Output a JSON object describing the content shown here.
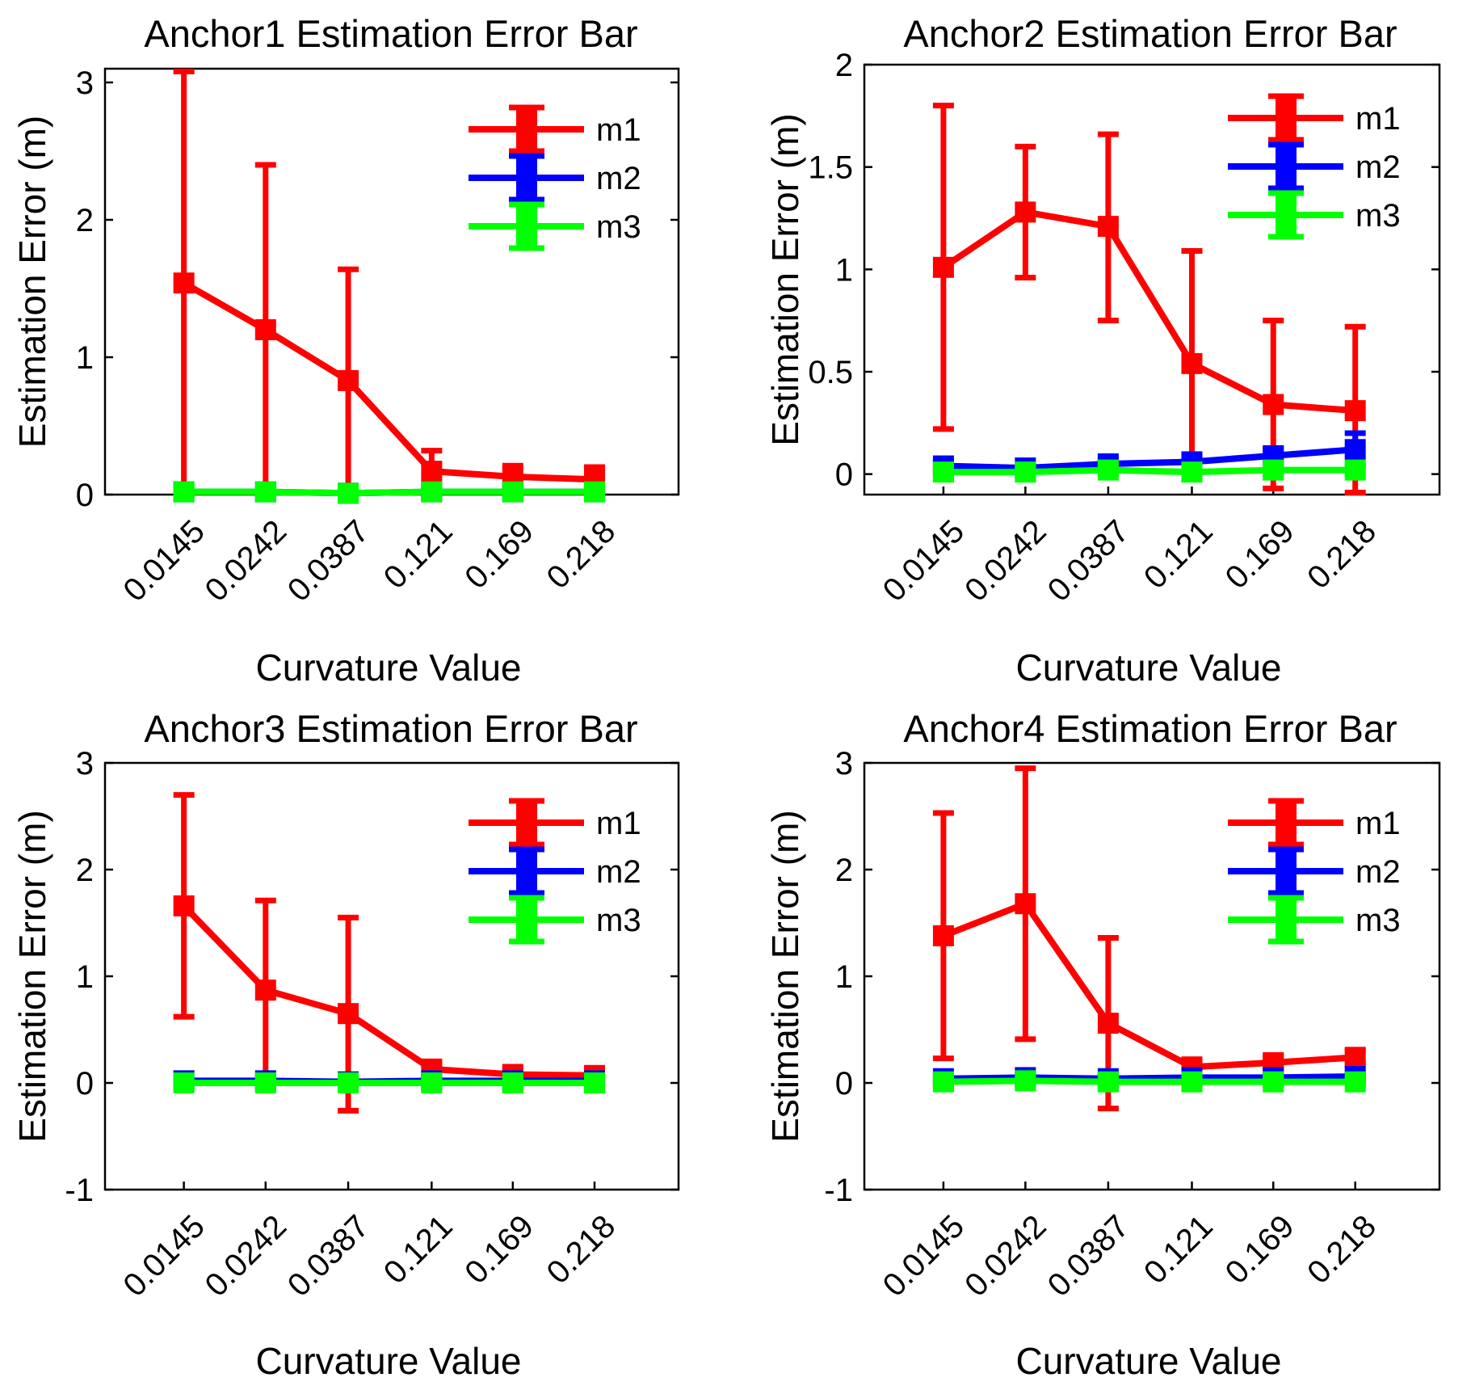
{
  "chart_data": [
    {
      "type": "line",
      "title": "Anchor1 Estimation Error Bar",
      "xlabel": "Curvature Value",
      "ylabel": "Estimation Error (m)",
      "categories": [
        "0.0145",
        "0.0242",
        "0.0387",
        "0.121",
        "0.169",
        "0.218"
      ],
      "ylim": [
        0,
        3.1
      ],
      "yticks": [
        0,
        1,
        2,
        3
      ],
      "yticklabels": [
        "0",
        "1",
        "2",
        "3"
      ],
      "legend": "top-right",
      "series": [
        {
          "name": "m1",
          "color": "#ff0000",
          "values": [
            1.54,
            1.2,
            0.83,
            0.17,
            0.13,
            0.11
          ],
          "upper": [
            3.08,
            2.4,
            1.64,
            0.32,
            0.21,
            0.2
          ],
          "lower": [
            0.0,
            0.0,
            0.0,
            0.02,
            0.05,
            0.03
          ]
        },
        {
          "name": "m2",
          "color": "#0000ff",
          "values": [
            0.02,
            0.02,
            0.01,
            0.02,
            0.02,
            0.02
          ],
          "upper": [
            0.04,
            0.04,
            0.03,
            0.04,
            0.04,
            0.06
          ],
          "lower": [
            0.0,
            0.0,
            0.0,
            0.0,
            0.0,
            0.0
          ]
        },
        {
          "name": "m3",
          "color": "#00ff00",
          "values": [
            0.02,
            0.02,
            0.01,
            0.02,
            0.02,
            0.02
          ],
          "upper": [
            0.04,
            0.04,
            0.03,
            0.04,
            0.04,
            0.04
          ],
          "lower": [
            0.0,
            0.0,
            0.0,
            0.0,
            0.0,
            0.0
          ]
        }
      ]
    },
    {
      "type": "line",
      "title": "Anchor2 Estimation Error Bar",
      "xlabel": "Curvature Value",
      "ylabel": "Estimation Error (m)",
      "categories": [
        "0.0145",
        "0.0242",
        "0.0387",
        "0.121",
        "0.169",
        "0.218"
      ],
      "ylim": [
        -0.1,
        2
      ],
      "yticks": [
        0,
        0.5,
        1,
        1.5,
        2
      ],
      "yticklabels": [
        "0",
        "0.5",
        "1",
        "1.5",
        "2"
      ],
      "legend": "top-right",
      "series": [
        {
          "name": "m1",
          "color": "#ff0000",
          "values": [
            1.01,
            1.28,
            1.21,
            0.54,
            0.34,
            0.31
          ],
          "upper": [
            1.8,
            1.6,
            1.66,
            1.09,
            0.75,
            0.72
          ],
          "lower": [
            0.22,
            0.96,
            0.75,
            0.0,
            -0.07,
            -0.09
          ]
        },
        {
          "name": "m2",
          "color": "#0000ff",
          "values": [
            0.04,
            0.03,
            0.05,
            0.06,
            0.09,
            0.12
          ],
          "upper": [
            0.06,
            0.05,
            0.07,
            0.08,
            0.12,
            0.2
          ],
          "lower": [
            0.02,
            0.01,
            0.03,
            0.04,
            0.06,
            0.04
          ]
        },
        {
          "name": "m3",
          "color": "#00ff00",
          "values": [
            0.01,
            0.01,
            0.02,
            0.01,
            0.02,
            0.02
          ],
          "upper": [
            0.03,
            0.03,
            0.04,
            0.03,
            0.04,
            0.04
          ],
          "lower": [
            -0.01,
            -0.01,
            0.0,
            -0.01,
            0.0,
            0.0
          ]
        }
      ]
    },
    {
      "type": "line",
      "title": "Anchor3 Estimation Error Bar",
      "xlabel": "Curvature Value",
      "ylabel": "Estimation Error (m)",
      "categories": [
        "0.0145",
        "0.0242",
        "0.0387",
        "0.121",
        "0.169",
        "0.218"
      ],
      "ylim": [
        -1,
        3
      ],
      "yticks": [
        -1,
        0,
        1,
        2,
        3
      ],
      "yticklabels": [
        "-1",
        "0",
        "1",
        "2",
        "3"
      ],
      "legend": "top-right",
      "series": [
        {
          "name": "m1",
          "color": "#ff0000",
          "values": [
            1.66,
            0.87,
            0.65,
            0.13,
            0.08,
            0.07
          ],
          "upper": [
            2.7,
            1.71,
            1.55,
            0.18,
            0.12,
            0.11
          ],
          "lower": [
            0.62,
            0.03,
            -0.26,
            0.08,
            0.04,
            0.03
          ]
        },
        {
          "name": "m2",
          "color": "#0000ff",
          "values": [
            0.02,
            0.02,
            0.01,
            0.02,
            0.02,
            0.02
          ],
          "upper": [
            0.05,
            0.05,
            0.04,
            0.05,
            0.05,
            0.05
          ],
          "lower": [
            -0.01,
            -0.01,
            -0.02,
            -0.01,
            -0.01,
            -0.01
          ]
        },
        {
          "name": "m3",
          "color": "#00ff00",
          "values": [
            0.0,
            0.0,
            0.0,
            0.0,
            0.0,
            0.0
          ],
          "upper": [
            0.03,
            0.03,
            0.03,
            0.03,
            0.03,
            0.03
          ],
          "lower": [
            -0.03,
            -0.03,
            -0.03,
            -0.03,
            -0.03,
            -0.03
          ]
        }
      ]
    },
    {
      "type": "line",
      "title": "Anchor4 Estimation Error Bar",
      "xlabel": "Curvature Value",
      "ylabel": "Estimation Error (m)",
      "categories": [
        "0.0145",
        "0.0242",
        "0.0387",
        "0.121",
        "0.169",
        "0.218"
      ],
      "ylim": [
        -1,
        3
      ],
      "yticks": [
        -1,
        0,
        1,
        2,
        3
      ],
      "yticklabels": [
        "-1",
        "0",
        "1",
        "2",
        "3"
      ],
      "legend": "top-right",
      "series": [
        {
          "name": "m1",
          "color": "#ff0000",
          "values": [
            1.38,
            1.68,
            0.56,
            0.15,
            0.19,
            0.24
          ],
          "upper": [
            2.53,
            2.95,
            1.36,
            0.2,
            0.24,
            0.3
          ],
          "lower": [
            0.23,
            0.41,
            -0.24,
            0.1,
            0.14,
            0.18
          ]
        },
        {
          "name": "m2",
          "color": "#0000ff",
          "values": [
            0.04,
            0.05,
            0.04,
            0.05,
            0.05,
            0.06
          ],
          "upper": [
            0.07,
            0.08,
            0.07,
            0.08,
            0.08,
            0.09
          ],
          "lower": [
            0.01,
            0.02,
            0.01,
            0.02,
            0.02,
            0.03
          ]
        },
        {
          "name": "m3",
          "color": "#00ff00",
          "values": [
            0.01,
            0.02,
            0.01,
            0.01,
            0.01,
            0.01
          ],
          "upper": [
            0.04,
            0.05,
            0.04,
            0.04,
            0.04,
            0.04
          ],
          "lower": [
            -0.02,
            -0.01,
            -0.02,
            -0.02,
            -0.02,
            -0.02
          ]
        }
      ]
    }
  ]
}
